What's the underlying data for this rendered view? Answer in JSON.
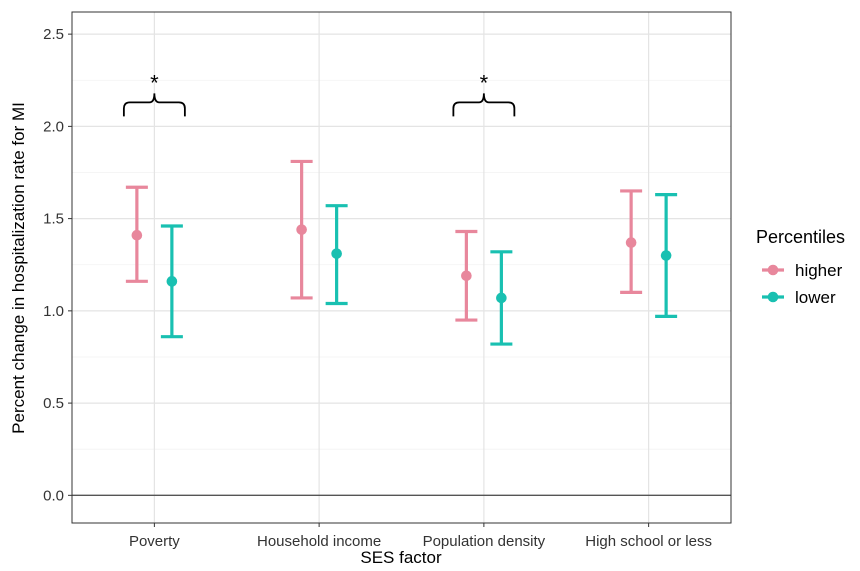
{
  "chart_data": {
    "type": "errorbar",
    "xlabel": "SES factor",
    "ylabel": "Percent change in hospitalization rate for MI",
    "ylim": [
      -0.15,
      2.62
    ],
    "yticks": [
      "0.0",
      "0.5",
      "1.0",
      "1.5",
      "2.0",
      "2.5"
    ],
    "ytick_values": [
      0,
      0.5,
      1.0,
      1.5,
      2.0,
      2.5
    ],
    "grid": true,
    "categories": [
      "Poverty",
      "Household income",
      "Population density",
      "High school or less"
    ],
    "series": [
      {
        "name": "higher",
        "color": "#E8879C",
        "estimate": [
          1.41,
          1.44,
          1.19,
          1.37
        ],
        "lower": [
          1.16,
          1.07,
          0.95,
          1.1
        ],
        "upper": [
          1.67,
          1.81,
          1.43,
          1.65
        ]
      },
      {
        "name": "lower",
        "color": "#19C0B1",
        "estimate": [
          1.16,
          1.31,
          1.07,
          1.3
        ],
        "lower": [
          0.86,
          1.04,
          0.82,
          0.97
        ],
        "upper": [
          1.46,
          1.57,
          1.32,
          1.63
        ]
      }
    ],
    "significance": [
      {
        "category_index": 0,
        "label": "*",
        "y": 2.13
      },
      {
        "category_index": 2,
        "label": "*",
        "y": 2.13
      }
    ],
    "reference_line_y": 0,
    "legend": {
      "title": "Percentiles",
      "position": "right",
      "items": [
        {
          "label": "higher",
          "color": "#E8879C"
        },
        {
          "label": "lower",
          "color": "#19C0B1"
        }
      ]
    }
  }
}
